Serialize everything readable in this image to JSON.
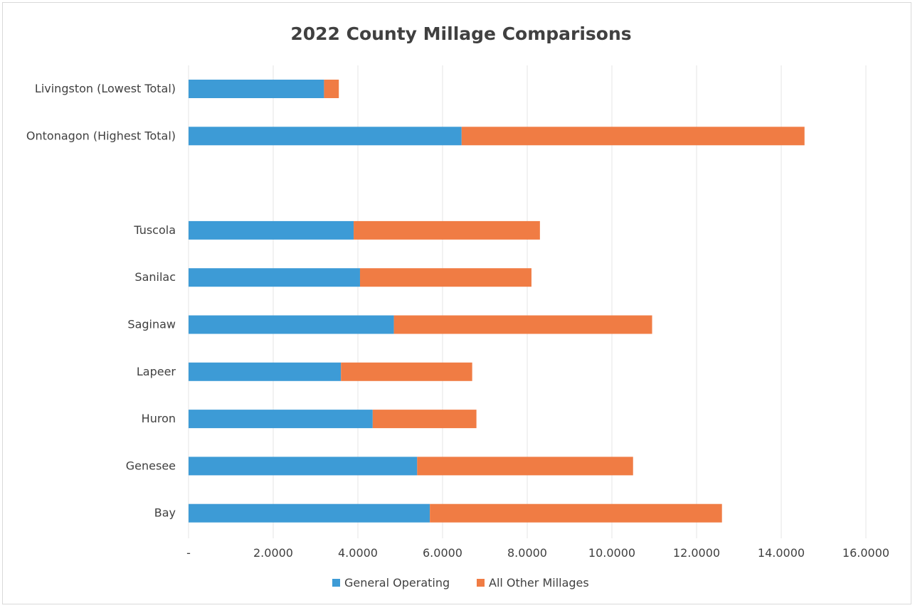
{
  "chart_data": {
    "type": "bar",
    "orientation": "horizontal",
    "stacked": true,
    "title": "2022 County Millage Comparisons",
    "categories": [
      "Livingston (Lowest Total)",
      "Ontonagon (Highest Total)",
      "",
      "Tuscola",
      "Sanilac",
      "Saginaw",
      "Lapeer",
      "Huron",
      "Genesee",
      "Bay"
    ],
    "series": [
      {
        "name": "General Operating",
        "color": "#3d9bd6",
        "values": [
          3.2,
          6.45,
          null,
          3.9,
          4.05,
          4.85,
          3.6,
          4.35,
          5.4,
          5.7
        ]
      },
      {
        "name": "All Other Millages",
        "color": "#f07c44",
        "values": [
          0.35,
          8.1,
          null,
          4.4,
          4.05,
          6.1,
          3.1,
          2.45,
          5.1,
          6.9
        ]
      }
    ],
    "xlim": [
      0,
      16
    ],
    "xticks": [
      0,
      2,
      4,
      6,
      8,
      10,
      12,
      14,
      16
    ],
    "xtick_labels": [
      "-",
      "2.0000",
      "4.0000",
      "6.0000",
      "8.0000",
      "10.0000",
      "12.0000",
      "14.0000",
      "16.0000"
    ],
    "grid": true,
    "legend_position": "bottom"
  }
}
